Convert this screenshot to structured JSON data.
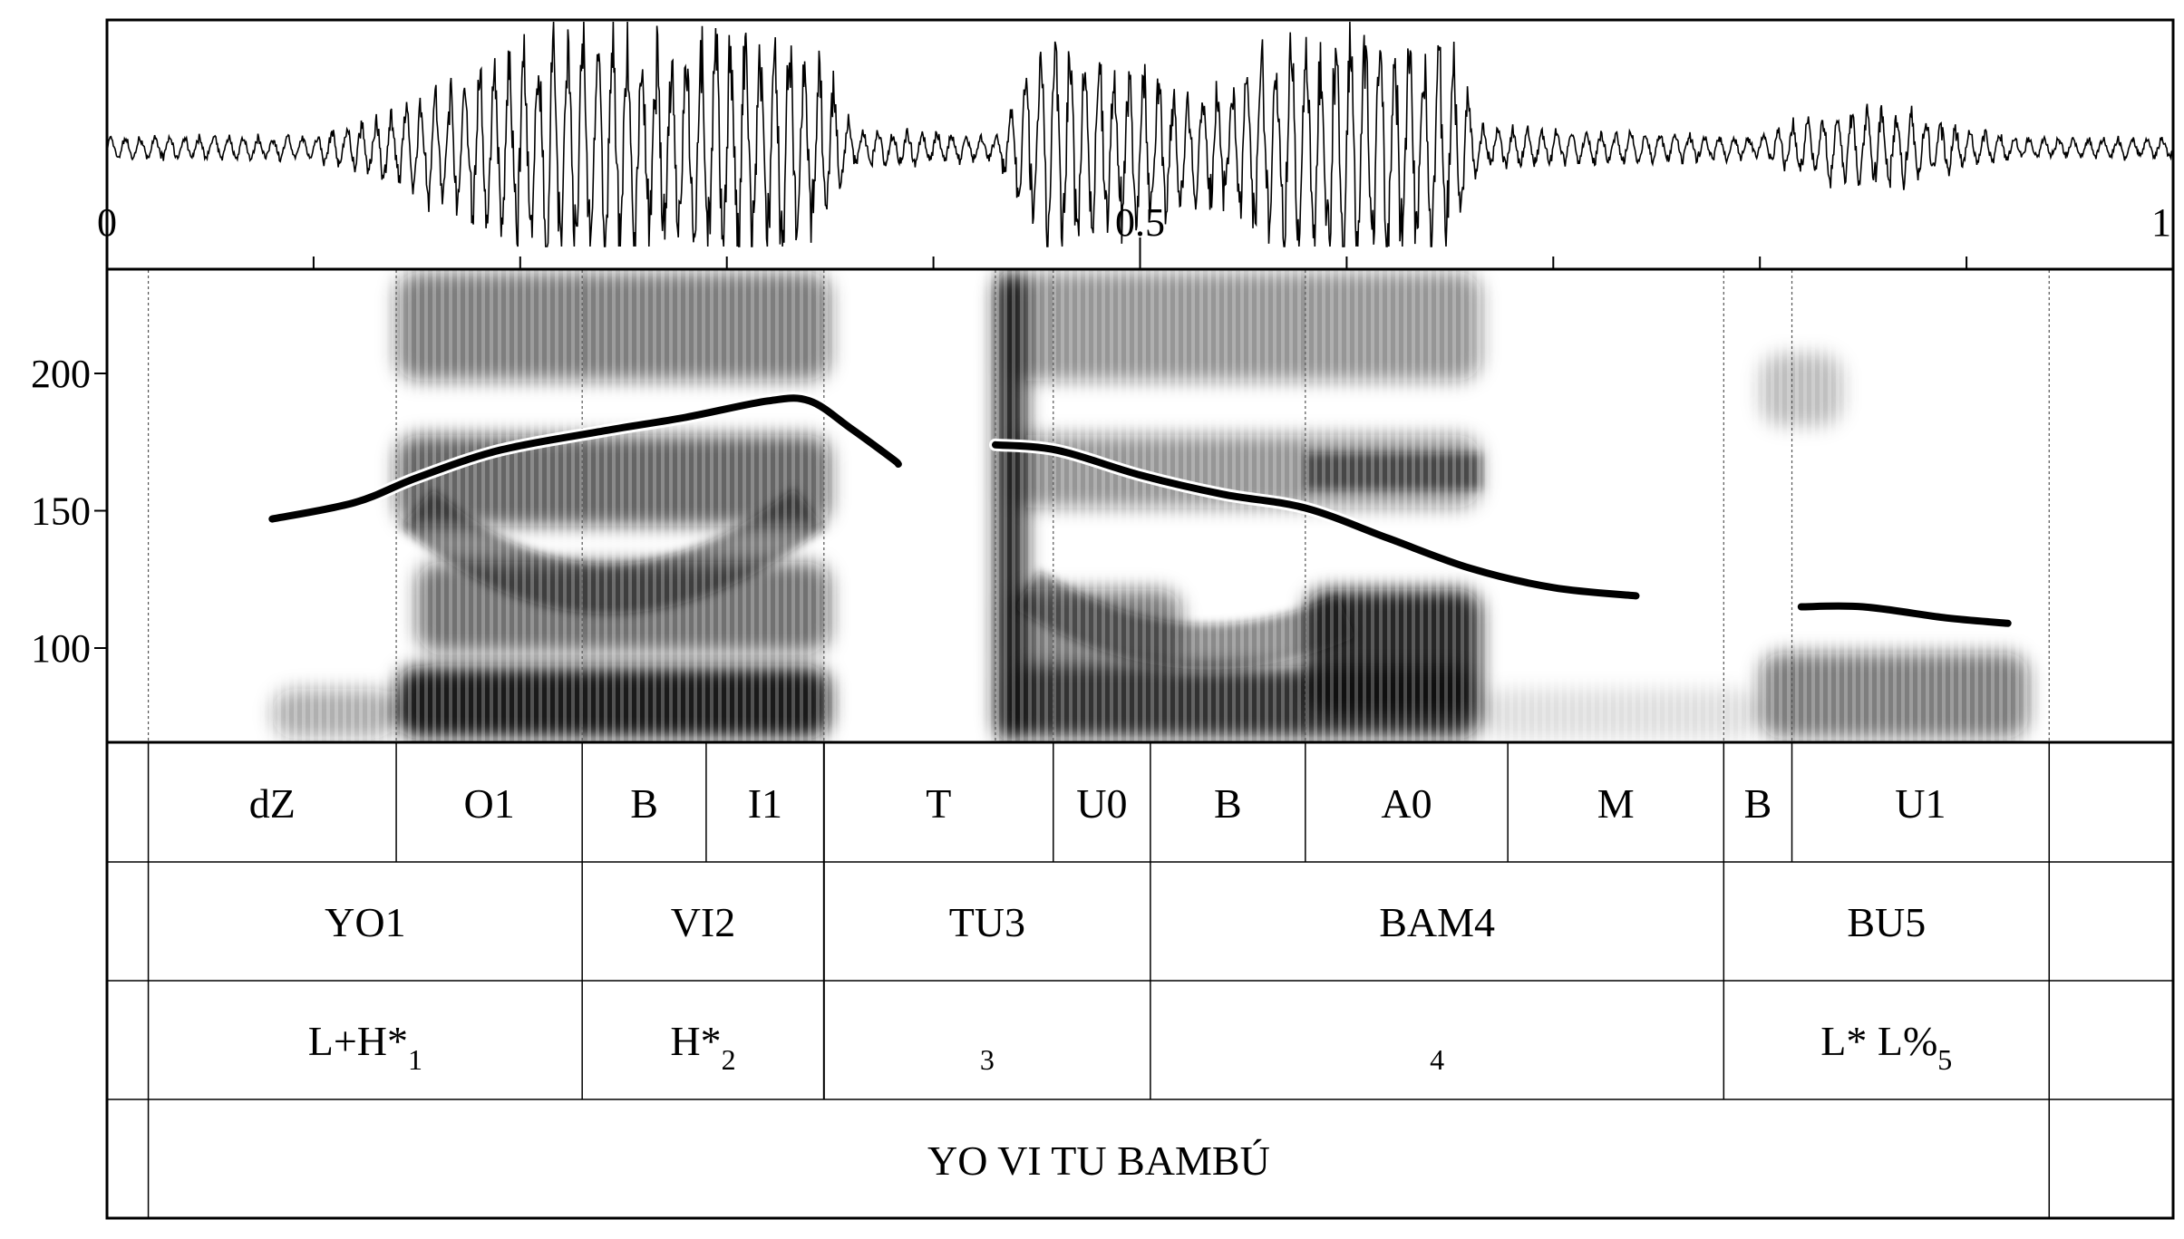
{
  "waveform": {
    "time_ticks": [
      {
        "t": 0,
        "label": "0"
      },
      {
        "t": 0.5,
        "label": "0.5"
      },
      {
        "t": 1,
        "label": "1"
      }
    ],
    "minor_ticks": [
      0.1,
      0.2,
      0.3,
      0.4,
      0.6,
      0.7,
      0.8,
      0.9
    ],
    "amplitude_envelope": [
      {
        "t": 0.1,
        "a": 0.03
      },
      {
        "t": 0.14,
        "a": 0.25
      },
      {
        "t": 0.22,
        "a": 0.95
      },
      {
        "t": 0.26,
        "a": 0.75
      },
      {
        "t": 0.3,
        "a": 0.9
      },
      {
        "t": 0.33,
        "a": 0.85
      },
      {
        "t": 0.35,
        "a": 0.6
      },
      {
        "t": 0.36,
        "a": 0.1
      },
      {
        "t": 0.43,
        "a": 0.04
      },
      {
        "t": 0.44,
        "a": 0.35
      },
      {
        "t": 0.455,
        "a": 0.85
      },
      {
        "t": 0.49,
        "a": 0.65
      },
      {
        "t": 0.53,
        "a": 0.35
      },
      {
        "t": 0.58,
        "a": 0.9
      },
      {
        "t": 0.605,
        "a": 1.0
      },
      {
        "t": 0.65,
        "a": 0.8
      },
      {
        "t": 0.665,
        "a": 0.1
      },
      {
        "t": 0.8,
        "a": 0.03
      },
      {
        "t": 0.83,
        "a": 0.22
      },
      {
        "t": 0.86,
        "a": 0.28
      },
      {
        "t": 0.9,
        "a": 0.1
      },
      {
        "t": 0.93,
        "a": 0.02
      }
    ]
  },
  "pitch": {
    "y_axis": {
      "ticks": [
        {
          "hz": 200,
          "label": "200"
        },
        {
          "hz": 150,
          "label": "150"
        },
        {
          "hz": 100,
          "label": "100"
        }
      ]
    },
    "contours": [
      [
        [
          0.08,
          147
        ],
        [
          0.12,
          153
        ],
        [
          0.15,
          162
        ],
        [
          0.19,
          172
        ],
        [
          0.24,
          179
        ],
        [
          0.28,
          184
        ],
        [
          0.32,
          190
        ],
        [
          0.34,
          190
        ],
        [
          0.36,
          180
        ],
        [
          0.38,
          169
        ],
        [
          0.383,
          167
        ]
      ],
      [
        [
          0.43,
          174
        ],
        [
          0.46,
          172
        ],
        [
          0.5,
          163
        ],
        [
          0.54,
          156
        ],
        [
          0.58,
          151
        ],
        [
          0.62,
          140
        ],
        [
          0.66,
          129
        ],
        [
          0.7,
          122
        ],
        [
          0.74,
          119
        ]
      ],
      [
        [
          0.82,
          115
        ],
        [
          0.85,
          115
        ],
        [
          0.89,
          111
        ],
        [
          0.92,
          109
        ]
      ]
    ],
    "boundaries": [
      0.02,
      0.14,
      0.23,
      0.347,
      0.43,
      0.458,
      0.58,
      0.7825,
      0.8155,
      0.94
    ]
  },
  "tiers": {
    "segments": [
      {
        "label": "dZ",
        "t0": 0.02,
        "t1": 0.14
      },
      {
        "label": "O1",
        "t0": 0.14,
        "t1": 0.23
      },
      {
        "label": "B",
        "t0": 0.23,
        "t1": 0.29
      },
      {
        "label": "I1",
        "t0": 0.29,
        "t1": 0.347
      },
      {
        "label": "T",
        "t0": 0.347,
        "t1": 0.458
      },
      {
        "label": "U0",
        "t0": 0.458,
        "t1": 0.505
      },
      {
        "label": "B",
        "t0": 0.505,
        "t1": 0.58
      },
      {
        "label": "A0",
        "t0": 0.58,
        "t1": 0.678
      },
      {
        "label": "M",
        "t0": 0.678,
        "t1": 0.7825
      },
      {
        "label": "B",
        "t0": 0.7825,
        "t1": 0.8155
      },
      {
        "label": "U1",
        "t0": 0.8155,
        "t1": 0.94
      }
    ],
    "syllables": [
      {
        "label": "YO1",
        "t0": 0.02,
        "t1": 0.23
      },
      {
        "label": "VI2",
        "t0": 0.23,
        "t1": 0.347
      },
      {
        "label": "TU3",
        "t0": 0.347,
        "t1": 0.505
      },
      {
        "label": "BAM4",
        "t0": 0.505,
        "t1": 0.7825
      },
      {
        "label": "BU5",
        "t0": 0.7825,
        "t1": 0.94
      }
    ],
    "tones": [
      {
        "label": "L+H*",
        "sub": "1",
        "t0": 0.02,
        "t1": 0.23
      },
      {
        "label": "H*",
        "sub": "2",
        "t0": 0.23,
        "t1": 0.347
      },
      {
        "label": "",
        "sub": "3",
        "t0": 0.347,
        "t1": 0.505
      },
      {
        "label": "",
        "sub": "4",
        "t0": 0.505,
        "t1": 0.7825
      },
      {
        "label": "L* L%",
        "sub": "5",
        "t0": 0.7825,
        "t1": 0.94
      }
    ],
    "sentence": {
      "label": "YO VI TU BAMBÚ",
      "t0": 0.02,
      "t1": 0.94
    }
  }
}
